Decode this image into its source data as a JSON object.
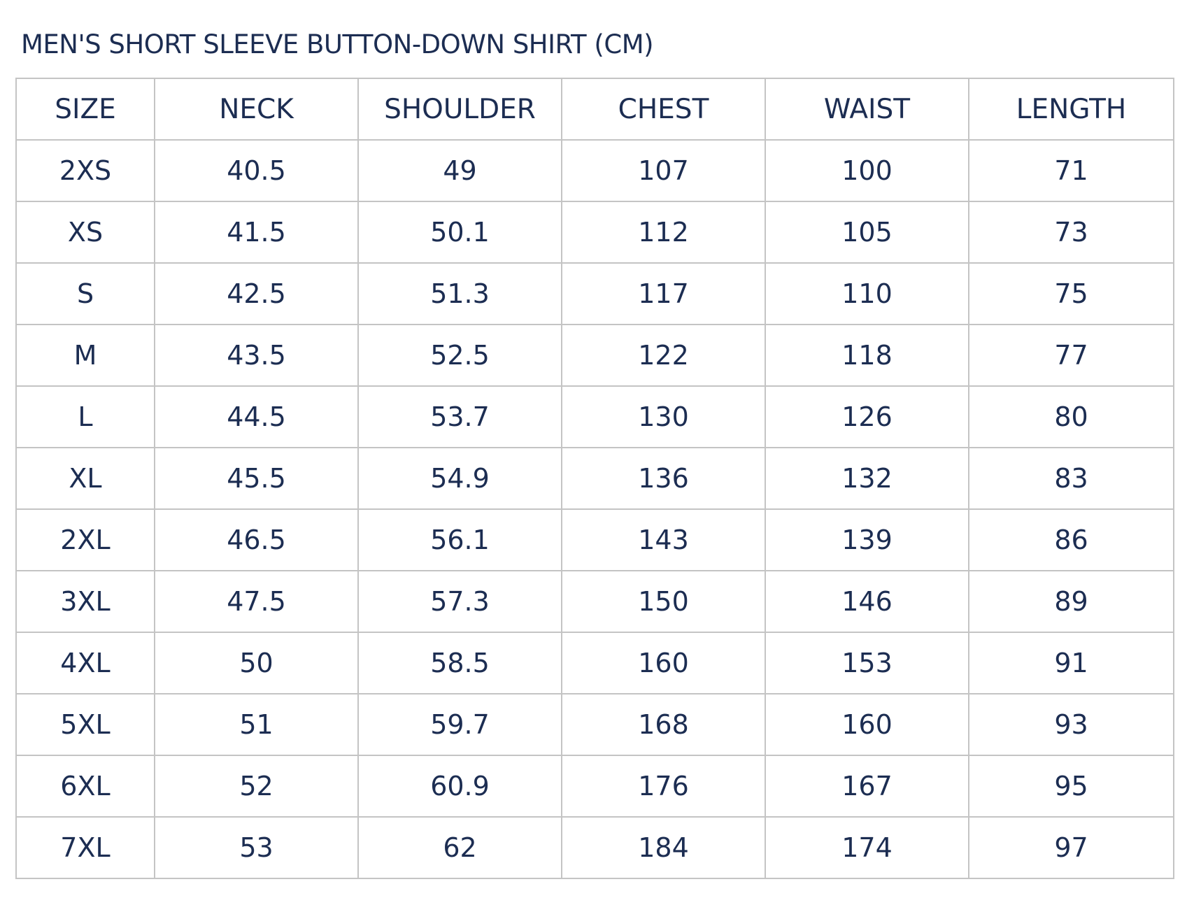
{
  "title": "MEN'S SHORT SLEEVE BUTTON-DOWN SHIRT (CM)",
  "columns": [
    "SIZE",
    "NECK",
    "SHOULDER",
    "CHEST",
    "WAIST",
    "LENGTH"
  ],
  "rows": [
    [
      "2XS",
      "40.5",
      "49",
      "107",
      "100",
      "71"
    ],
    [
      "XS",
      "41.5",
      "50.1",
      "112",
      "105",
      "73"
    ],
    [
      "S",
      "42.5",
      "51.3",
      "117",
      "110",
      "75"
    ],
    [
      "M",
      "43.5",
      "52.5",
      "122",
      "118",
      "77"
    ],
    [
      "L",
      "44.5",
      "53.7",
      "130",
      "126",
      "80"
    ],
    [
      "XL",
      "45.5",
      "54.9",
      "136",
      "132",
      "83"
    ],
    [
      "2XL",
      "46.5",
      "56.1",
      "143",
      "139",
      "86"
    ],
    [
      "3XL",
      "47.5",
      "57.3",
      "150",
      "146",
      "89"
    ],
    [
      "4XL",
      "50",
      "58.5",
      "160",
      "153",
      "91"
    ],
    [
      "5XL",
      "51",
      "59.7",
      "168",
      "160",
      "93"
    ],
    [
      "6XL",
      "52",
      "60.9",
      "176",
      "167",
      "95"
    ],
    [
      "7XL",
      "53",
      "62",
      "184",
      "174",
      "97"
    ]
  ],
  "colors": {
    "text": "#1c2d52",
    "border": "#c4c4c4"
  }
}
